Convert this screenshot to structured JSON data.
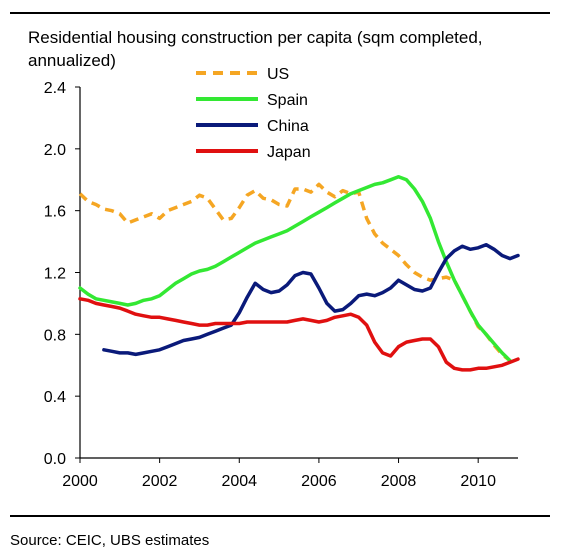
{
  "chart_data": {
    "type": "line",
    "title": "Residential housing construction per capita (sqm completed, annualized)",
    "source": "Source: CEIC, UBS estimates",
    "xlim": [
      2000,
      2011
    ],
    "ylim": [
      0.0,
      2.4
    ],
    "x_ticks": [
      2000,
      2002,
      2004,
      2006,
      2008,
      2010
    ],
    "x_tick_labels": [
      "2000",
      "2002",
      "2004",
      "2006",
      "2008",
      "2010"
    ],
    "y_ticks": [
      0.0,
      0.4,
      0.8,
      1.2,
      1.6,
      2.0,
      2.4
    ],
    "y_tick_labels": [
      "0.0",
      "0.4",
      "0.8",
      "1.2",
      "1.6",
      "2.0",
      "2.4"
    ],
    "grid": false,
    "legend_position": "top-center",
    "series": [
      {
        "name": "US",
        "color": "#f5a623",
        "dash": "dashed",
        "points": [
          [
            2000.0,
            1.71
          ],
          [
            2000.2,
            1.66
          ],
          [
            2000.4,
            1.64
          ],
          [
            2000.6,
            1.61
          ],
          [
            2000.8,
            1.6
          ],
          [
            2001.0,
            1.58
          ],
          [
            2001.2,
            1.52
          ],
          [
            2001.4,
            1.54
          ],
          [
            2001.6,
            1.56
          ],
          [
            2001.8,
            1.58
          ],
          [
            2002.0,
            1.55
          ],
          [
            2002.2,
            1.6
          ],
          [
            2002.4,
            1.62
          ],
          [
            2002.6,
            1.64
          ],
          [
            2002.8,
            1.66
          ],
          [
            2003.0,
            1.7
          ],
          [
            2003.2,
            1.68
          ],
          [
            2003.4,
            1.61
          ],
          [
            2003.6,
            1.54
          ],
          [
            2003.8,
            1.55
          ],
          [
            2004.0,
            1.62
          ],
          [
            2004.2,
            1.7
          ],
          [
            2004.4,
            1.73
          ],
          [
            2004.6,
            1.68
          ],
          [
            2004.8,
            1.67
          ],
          [
            2005.0,
            1.64
          ],
          [
            2005.2,
            1.63
          ],
          [
            2005.4,
            1.74
          ],
          [
            2005.6,
            1.74
          ],
          [
            2005.8,
            1.72
          ],
          [
            2006.0,
            1.77
          ],
          [
            2006.2,
            1.72
          ],
          [
            2006.4,
            1.69
          ],
          [
            2006.6,
            1.73
          ],
          [
            2006.8,
            1.71
          ],
          [
            2007.0,
            1.72
          ],
          [
            2007.2,
            1.55
          ],
          [
            2007.4,
            1.45
          ],
          [
            2007.6,
            1.39
          ],
          [
            2007.8,
            1.35
          ],
          [
            2008.0,
            1.31
          ],
          [
            2008.2,
            1.25
          ],
          [
            2008.4,
            1.2
          ],
          [
            2008.6,
            1.17
          ],
          [
            2008.8,
            1.15
          ],
          [
            2009.0,
            1.16
          ],
          [
            2009.2,
            1.17
          ],
          [
            2009.4,
            1.15
          ],
          [
            2009.6,
            1.05
          ],
          [
            2009.8,
            0.95
          ],
          [
            2010.0,
            0.85
          ],
          [
            2010.2,
            0.8
          ],
          [
            2010.4,
            0.73
          ],
          [
            2010.6,
            0.67
          ],
          [
            2010.8,
            0.63
          ]
        ]
      },
      {
        "name": "Spain",
        "color": "#33e833",
        "dash": "solid",
        "points": [
          [
            2000.0,
            1.1
          ],
          [
            2000.2,
            1.06
          ],
          [
            2000.4,
            1.03
          ],
          [
            2000.6,
            1.02
          ],
          [
            2000.8,
            1.01
          ],
          [
            2001.0,
            1.0
          ],
          [
            2001.2,
            0.99
          ],
          [
            2001.4,
            1.0
          ],
          [
            2001.6,
            1.02
          ],
          [
            2001.8,
            1.03
          ],
          [
            2002.0,
            1.05
          ],
          [
            2002.2,
            1.09
          ],
          [
            2002.4,
            1.13
          ],
          [
            2002.6,
            1.16
          ],
          [
            2002.8,
            1.19
          ],
          [
            2003.0,
            1.21
          ],
          [
            2003.2,
            1.22
          ],
          [
            2003.4,
            1.24
          ],
          [
            2003.6,
            1.27
          ],
          [
            2003.8,
            1.3
          ],
          [
            2004.0,
            1.33
          ],
          [
            2004.2,
            1.36
          ],
          [
            2004.4,
            1.39
          ],
          [
            2004.6,
            1.41
          ],
          [
            2004.8,
            1.43
          ],
          [
            2005.0,
            1.45
          ],
          [
            2005.2,
            1.47
          ],
          [
            2005.4,
            1.5
          ],
          [
            2005.6,
            1.53
          ],
          [
            2005.8,
            1.56
          ],
          [
            2006.0,
            1.59
          ],
          [
            2006.2,
            1.62
          ],
          [
            2006.4,
            1.65
          ],
          [
            2006.6,
            1.68
          ],
          [
            2006.8,
            1.71
          ],
          [
            2007.0,
            1.73
          ],
          [
            2007.2,
            1.75
          ],
          [
            2007.4,
            1.77
          ],
          [
            2007.6,
            1.78
          ],
          [
            2007.8,
            1.8
          ],
          [
            2008.0,
            1.82
          ],
          [
            2008.2,
            1.8
          ],
          [
            2008.4,
            1.74
          ],
          [
            2008.6,
            1.66
          ],
          [
            2008.8,
            1.55
          ],
          [
            2009.0,
            1.4
          ],
          [
            2009.2,
            1.27
          ],
          [
            2009.4,
            1.15
          ],
          [
            2009.6,
            1.05
          ],
          [
            2009.8,
            0.95
          ],
          [
            2010.0,
            0.86
          ],
          [
            2010.2,
            0.8
          ],
          [
            2010.4,
            0.74
          ],
          [
            2010.6,
            0.68
          ],
          [
            2010.8,
            0.63
          ]
        ]
      },
      {
        "name": "China",
        "color": "#0a1a7a",
        "dash": "solid",
        "points": [
          [
            2000.6,
            0.7
          ],
          [
            2000.8,
            0.69
          ],
          [
            2001.0,
            0.68
          ],
          [
            2001.2,
            0.68
          ],
          [
            2001.4,
            0.67
          ],
          [
            2001.6,
            0.68
          ],
          [
            2001.8,
            0.69
          ],
          [
            2002.0,
            0.7
          ],
          [
            2002.2,
            0.72
          ],
          [
            2002.4,
            0.74
          ],
          [
            2002.6,
            0.76
          ],
          [
            2002.8,
            0.77
          ],
          [
            2003.0,
            0.78
          ],
          [
            2003.2,
            0.8
          ],
          [
            2003.4,
            0.82
          ],
          [
            2003.6,
            0.84
          ],
          [
            2003.8,
            0.86
          ],
          [
            2004.0,
            0.94
          ],
          [
            2004.2,
            1.04
          ],
          [
            2004.4,
            1.13
          ],
          [
            2004.6,
            1.09
          ],
          [
            2004.8,
            1.07
          ],
          [
            2005.0,
            1.08
          ],
          [
            2005.2,
            1.12
          ],
          [
            2005.4,
            1.18
          ],
          [
            2005.6,
            1.2
          ],
          [
            2005.8,
            1.19
          ],
          [
            2006.0,
            1.1
          ],
          [
            2006.2,
            1.0
          ],
          [
            2006.4,
            0.95
          ],
          [
            2006.6,
            0.96
          ],
          [
            2006.8,
            1.0
          ],
          [
            2007.0,
            1.05
          ],
          [
            2007.2,
            1.06
          ],
          [
            2007.4,
            1.05
          ],
          [
            2007.6,
            1.07
          ],
          [
            2007.8,
            1.1
          ],
          [
            2008.0,
            1.15
          ],
          [
            2008.2,
            1.12
          ],
          [
            2008.4,
            1.09
          ],
          [
            2008.6,
            1.08
          ],
          [
            2008.8,
            1.1
          ],
          [
            2009.0,
            1.2
          ],
          [
            2009.2,
            1.29
          ],
          [
            2009.4,
            1.34
          ],
          [
            2009.6,
            1.37
          ],
          [
            2009.8,
            1.35
          ],
          [
            2010.0,
            1.36
          ],
          [
            2010.2,
            1.38
          ],
          [
            2010.4,
            1.35
          ],
          [
            2010.6,
            1.31
          ],
          [
            2010.8,
            1.29
          ],
          [
            2011.0,
            1.31
          ]
        ]
      },
      {
        "name": "Japan",
        "color": "#e01010",
        "dash": "solid",
        "points": [
          [
            2000.0,
            1.03
          ],
          [
            2000.2,
            1.02
          ],
          [
            2000.4,
            1.0
          ],
          [
            2000.6,
            0.99
          ],
          [
            2000.8,
            0.98
          ],
          [
            2001.0,
            0.97
          ],
          [
            2001.2,
            0.95
          ],
          [
            2001.4,
            0.93
          ],
          [
            2001.6,
            0.92
          ],
          [
            2001.8,
            0.91
          ],
          [
            2002.0,
            0.91
          ],
          [
            2002.2,
            0.9
          ],
          [
            2002.4,
            0.89
          ],
          [
            2002.6,
            0.88
          ],
          [
            2002.8,
            0.87
          ],
          [
            2003.0,
            0.86
          ],
          [
            2003.2,
            0.86
          ],
          [
            2003.4,
            0.87
          ],
          [
            2003.6,
            0.87
          ],
          [
            2003.8,
            0.87
          ],
          [
            2004.0,
            0.87
          ],
          [
            2004.2,
            0.88
          ],
          [
            2004.4,
            0.88
          ],
          [
            2004.6,
            0.88
          ],
          [
            2004.8,
            0.88
          ],
          [
            2005.0,
            0.88
          ],
          [
            2005.2,
            0.88
          ],
          [
            2005.4,
            0.89
          ],
          [
            2005.6,
            0.9
          ],
          [
            2005.8,
            0.89
          ],
          [
            2006.0,
            0.88
          ],
          [
            2006.2,
            0.89
          ],
          [
            2006.4,
            0.91
          ],
          [
            2006.6,
            0.92
          ],
          [
            2006.8,
            0.93
          ],
          [
            2007.0,
            0.91
          ],
          [
            2007.2,
            0.86
          ],
          [
            2007.4,
            0.75
          ],
          [
            2007.6,
            0.68
          ],
          [
            2007.8,
            0.66
          ],
          [
            2008.0,
            0.72
          ],
          [
            2008.2,
            0.75
          ],
          [
            2008.4,
            0.76
          ],
          [
            2008.6,
            0.77
          ],
          [
            2008.8,
            0.77
          ],
          [
            2009.0,
            0.72
          ],
          [
            2009.2,
            0.62
          ],
          [
            2009.4,
            0.58
          ],
          [
            2009.6,
            0.57
          ],
          [
            2009.8,
            0.57
          ],
          [
            2010.0,
            0.58
          ],
          [
            2010.2,
            0.58
          ],
          [
            2010.4,
            0.59
          ],
          [
            2010.6,
            0.6
          ],
          [
            2010.8,
            0.62
          ],
          [
            2011.0,
            0.64
          ]
        ]
      }
    ]
  }
}
